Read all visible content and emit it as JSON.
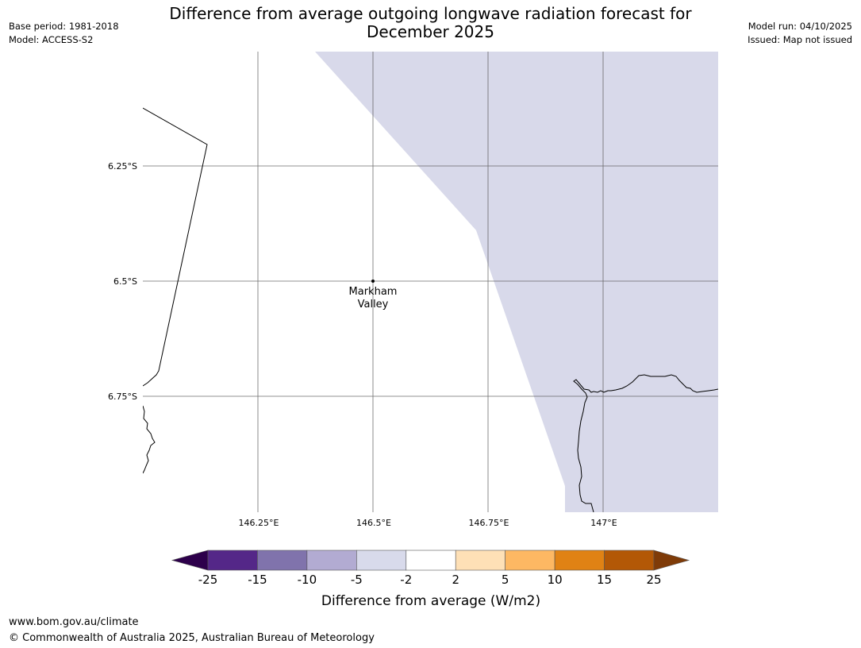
{
  "title": {
    "line1": "Difference from average outgoing longwave radiation forecast for",
    "line2": "December 2025"
  },
  "meta_left": {
    "base_period": "Base period: 1981-2018",
    "model": "Model: ACCESS-S2"
  },
  "meta_right": {
    "model_run": "Model run: 04/10/2025",
    "issued": "Issued: Map not issued"
  },
  "map": {
    "lat_labels": [
      "6.25°S",
      "6.5°S",
      "6.75°S"
    ],
    "lon_labels": [
      "146.25°E",
      "146.5°E",
      "146.75°E",
      "147°E"
    ],
    "location": {
      "name_line1": "Markham",
      "name_line2": "Valley"
    },
    "shaded_category": "-5 to -2",
    "shaded_color": "#d8d9ea"
  },
  "colorbar": {
    "label": "Difference from average (W/m2)",
    "ticks": [
      "-25",
      "-15",
      "-10",
      "-5",
      "-2",
      "2",
      "5",
      "10",
      "15",
      "25"
    ],
    "colors": [
      "#542788",
      "#8073ac",
      "#b2abd2",
      "#d8daeb",
      "#ffffff",
      "#fee0b6",
      "#fdb863",
      "#e08214",
      "#b35806"
    ],
    "under_color": "#2d004b",
    "over_color": "#7f3b08"
  },
  "footer": {
    "url": "www.bom.gov.au/climate",
    "copyright": "© Commonwealth of Australia 2025, Australian Bureau of Meteorology"
  }
}
